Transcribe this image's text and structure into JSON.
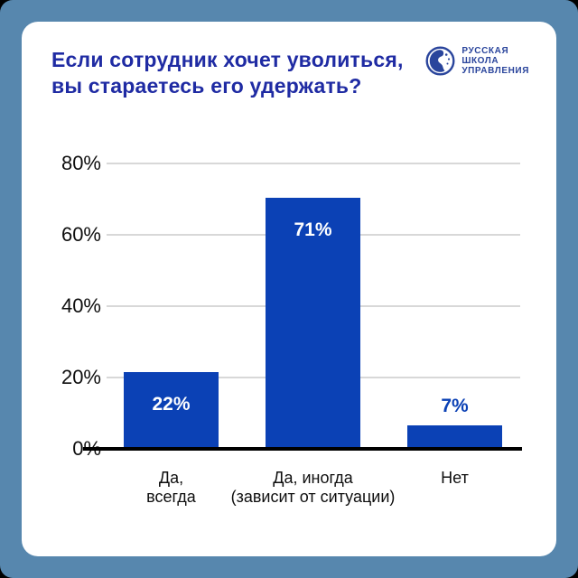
{
  "header": {
    "title_line1": "Если сотрудник хочет уволиться,",
    "title_line2": "вы стараетесь его удержать?",
    "title_color": "#1F2BA3"
  },
  "logo": {
    "lines": [
      "РУССКАЯ",
      "ШКОЛА",
      "УПРАВЛЕНИЯ"
    ],
    "icon": "globe-icon",
    "color": "#2A459C"
  },
  "frame": {
    "border_color": "#5787AE",
    "card_color": "#FFFFFF"
  },
  "chart_data": {
    "type": "bar",
    "title": "Если сотрудник хочет уволиться, вы стараетесь его удержать?",
    "categories": [
      [
        "Да,",
        "всегда"
      ],
      [
        "Да, иногда",
        "(зависит от ситуации)"
      ],
      [
        "Нет"
      ]
    ],
    "values": [
      22,
      71,
      7
    ],
    "value_labels": [
      "22%",
      "71%",
      "7%"
    ],
    "label_positions": [
      "inside",
      "inside",
      "above"
    ],
    "yticks": [
      {
        "value": 0,
        "label": "0%"
      },
      {
        "value": 20,
        "label": "20%"
      },
      {
        "value": 40,
        "label": "40%"
      },
      {
        "value": 60,
        "label": "60%"
      },
      {
        "value": 80,
        "label": "80%"
      }
    ],
    "ylim": [
      0,
      80
    ],
    "grid": true,
    "bar_color": "#0B41B5",
    "inside_label_color": "#FFFFFF",
    "above_label_color": "#0B41B5",
    "gridline_color": "#D8D8D8",
    "axis_color": "#000000",
    "xlabel": "",
    "ylabel": ""
  }
}
